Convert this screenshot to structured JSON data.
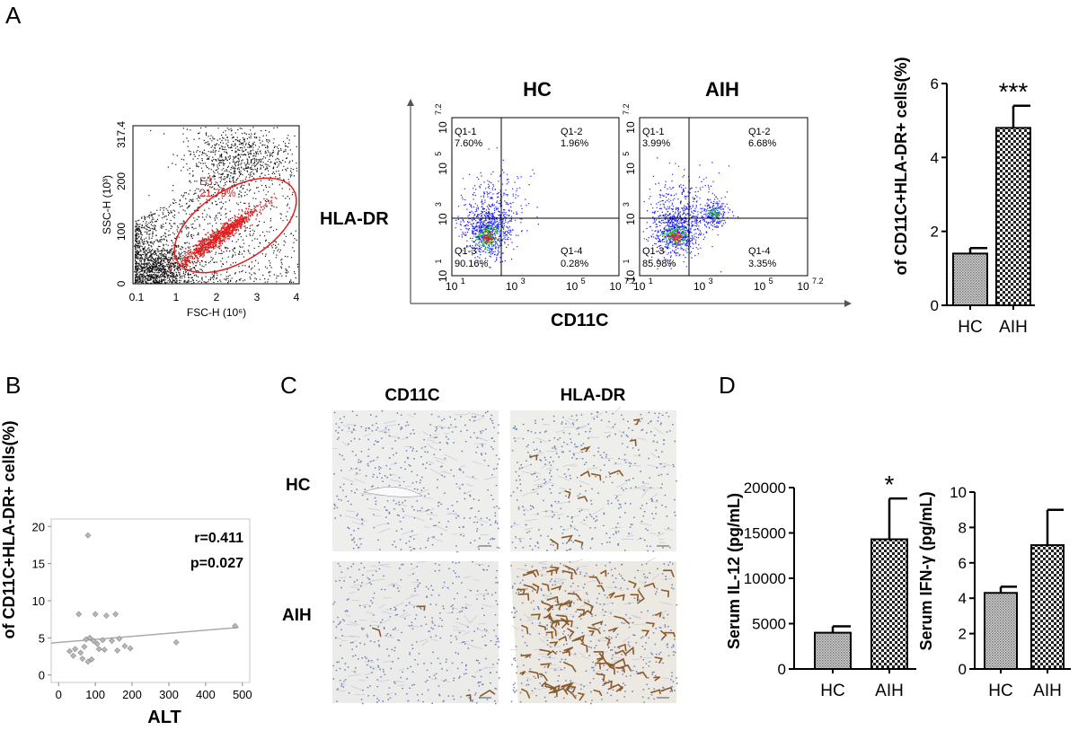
{
  "panels": {
    "a": "A",
    "b": "B",
    "c": "C",
    "d": "D"
  },
  "gate_plot": {
    "yaxis_label": "SSC-H (10³)",
    "xaxis_label": "FSC-H (10⁶)",
    "y_ticks": [
      "0",
      "100",
      "200",
      "317.4"
    ],
    "x_ticks": [
      "0.1",
      "1",
      "2",
      "3",
      "4"
    ],
    "gate_name": "E3",
    "gate_pct": "21.79%"
  },
  "flow_quadrants": {
    "y_label": "HLA-DR",
    "x_label": "CD11C",
    "y_ticks": [
      {
        "base": "10",
        "exp": "1"
      },
      {
        "base": "10",
        "exp": "3"
      },
      {
        "base": "10",
        "exp": "5"
      },
      {
        "base": "10",
        "exp": "7.2"
      }
    ],
    "x_ticks": [
      {
        "base": "10",
        "exp": "1"
      },
      {
        "base": "10",
        "exp": "3"
      },
      {
        "base": "10",
        "exp": "5"
      },
      {
        "base": "10",
        "exp": "7.2"
      }
    ],
    "plots": [
      {
        "title": "HC",
        "q1_name": "Q1-1",
        "q1": "7.60%",
        "q2_name": "Q1-2",
        "q2": "1.96%",
        "q3_name": "Q1-3",
        "q3": "90.16%",
        "q4_name": "Q1-4",
        "q4": "0.28%"
      },
      {
        "title": "AIH",
        "q1_name": "Q1-1",
        "q1": "3.99%",
        "q2_name": "Q1-2",
        "q2": "6.68%",
        "q3_name": "Q1-3",
        "q3": "85.98%",
        "q4_name": "Q1-4",
        "q4": "3.35%"
      }
    ]
  },
  "chart_data": [
    {
      "type": "bar",
      "panel": "A",
      "categories": [
        "HC",
        "AIH"
      ],
      "values": [
        1.4,
        4.8
      ],
      "errors": [
        0.15,
        0.6
      ],
      "significance": [
        "",
        "***"
      ],
      "ylabel": "of CD11C+HLA-DR+ cells(%)",
      "ylim": [
        0,
        6
      ],
      "yticks": [
        "0",
        "2",
        "4",
        "6"
      ]
    },
    {
      "type": "scatter",
      "panel": "B",
      "xlabel": "ALT",
      "ylabel": "of CD11C+HLA-DR+ cells(%)",
      "xlim": [
        -20,
        520
      ],
      "ylim": [
        -1,
        21
      ],
      "xticks": [
        "0",
        "100",
        "200",
        "300",
        "400",
        "500"
      ],
      "yticks": [
        "0",
        "5",
        "10",
        "15",
        "20"
      ],
      "annotations": [
        "r=0.411",
        "p=0.027"
      ],
      "trend_line": {
        "x": [
          -20,
          490
        ],
        "y": [
          4.3,
          6.4
        ]
      },
      "points": [
        [
          30,
          3.2
        ],
        [
          40,
          2.6
        ],
        [
          45,
          3.5
        ],
        [
          55,
          8.2
        ],
        [
          60,
          3.0
        ],
        [
          65,
          2.2
        ],
        [
          70,
          3.8
        ],
        [
          75,
          4.8
        ],
        [
          80,
          18.8
        ],
        [
          80,
          1.8
        ],
        [
          85,
          5.0
        ],
        [
          90,
          2.1
        ],
        [
          95,
          4.6
        ],
        [
          100,
          8.2
        ],
        [
          105,
          4.2
        ],
        [
          110,
          3.5
        ],
        [
          120,
          4.7
        ],
        [
          125,
          3.4
        ],
        [
          130,
          8.0
        ],
        [
          145,
          4.6
        ],
        [
          155,
          8.2
        ],
        [
          160,
          3.3
        ],
        [
          165,
          4.9
        ],
        [
          180,
          3.9
        ],
        [
          195,
          3.6
        ],
        [
          320,
          4.4
        ],
        [
          480,
          6.6
        ]
      ]
    },
    {
      "type": "bar",
      "panel": "D",
      "categories": [
        "HC",
        "AIH"
      ],
      "values": [
        4000,
        14300
      ],
      "errors": [
        700,
        4500
      ],
      "significance": [
        "",
        "*"
      ],
      "ylabel": "Serum IL-12 (pg/mL)",
      "ylim": [
        0,
        20000
      ],
      "yticks": [
        "0",
        "5000",
        "10000",
        "15000",
        "20000"
      ]
    },
    {
      "type": "bar",
      "panel": "D",
      "categories": [
        "HC",
        "AIH"
      ],
      "values": [
        4.3,
        7.0
      ],
      "errors": [
        0.35,
        2.0
      ],
      "significance": [
        "",
        ""
      ],
      "ylabel": "Serum IFN-γ (pg/mL)",
      "ylim": [
        0,
        10
      ],
      "yticks": [
        "0",
        "2",
        "4",
        "6",
        "8",
        "10"
      ]
    }
  ],
  "ihc": {
    "col_headers": [
      "CD11C",
      "HLA-DR"
    ],
    "row_headers": [
      "HC",
      "AIH"
    ]
  },
  "colors": {
    "gate": "#e02020",
    "flow_high": "#e02020",
    "flow_mid": "#20c020",
    "flow_low": "#1a1aff"
  }
}
